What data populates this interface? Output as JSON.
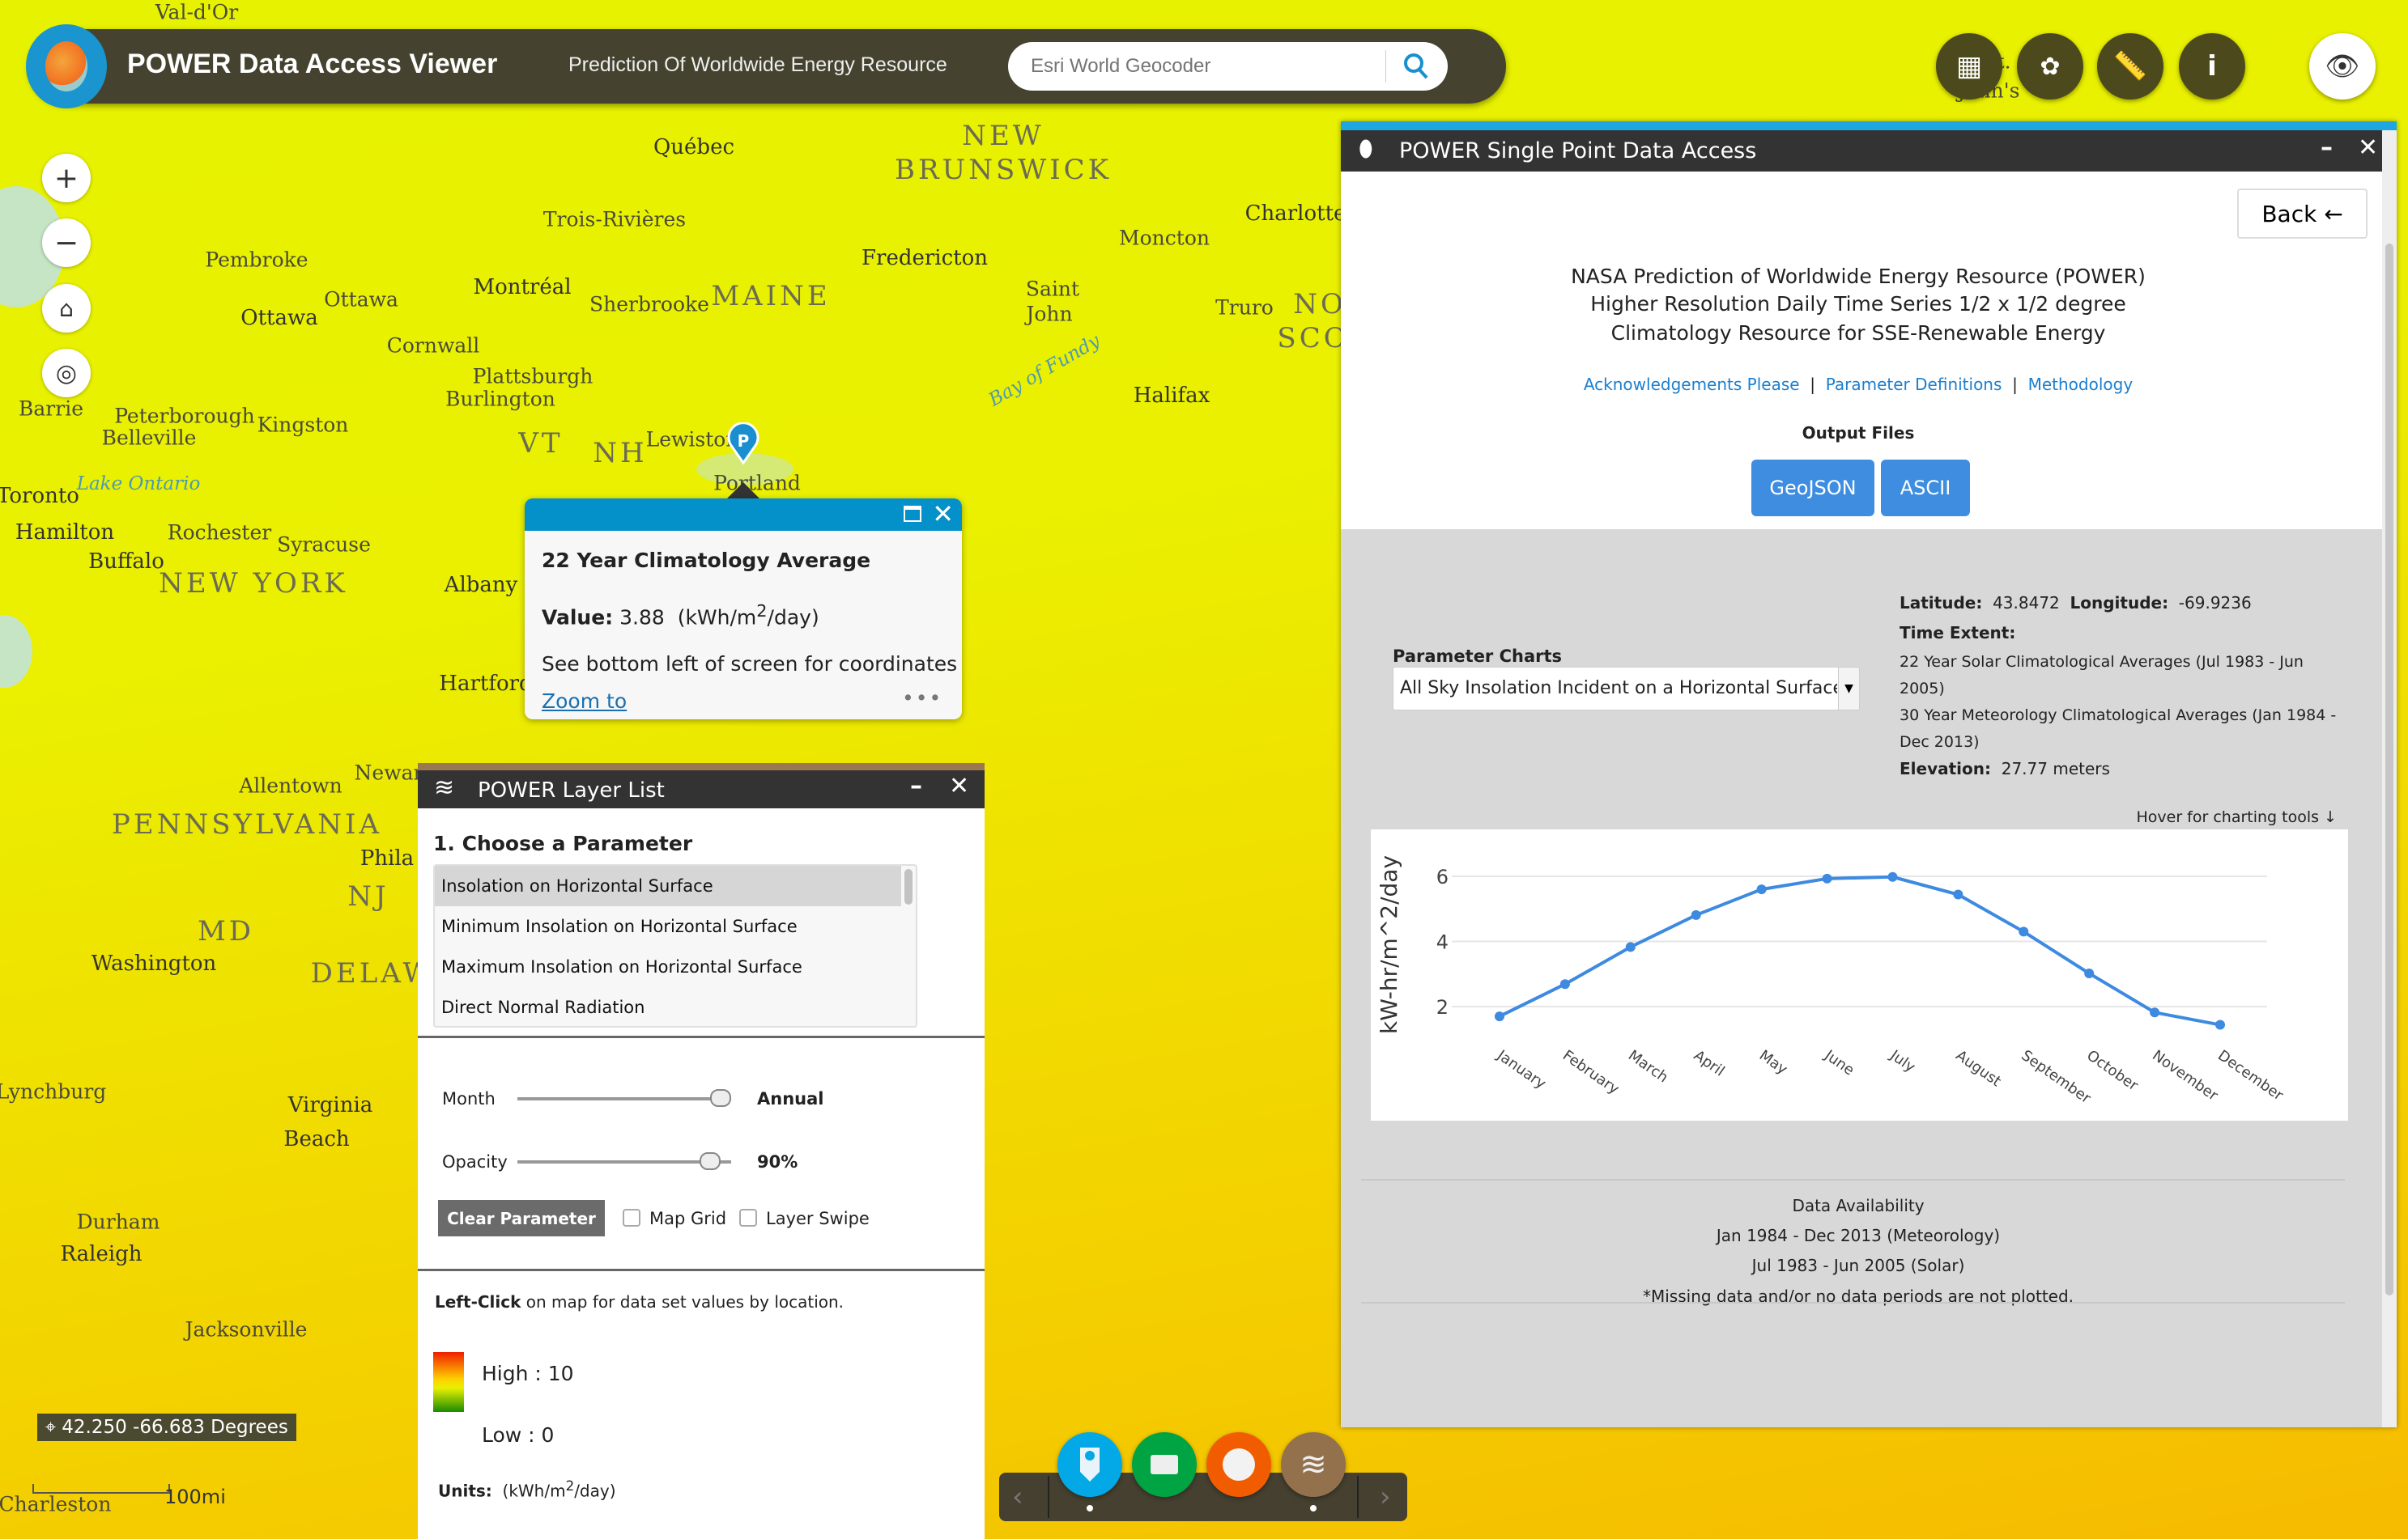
{
  "header": {
    "title": "POWER Data Access Viewer",
    "subtitle": "Prediction Of Worldwide Energy Resource",
    "search_placeholder": "Esri World Geocoder"
  },
  "map": {
    "labels": [
      "Val-d'Or",
      "Québec",
      "NEW",
      "BRUNSWICK",
      "Trois-Rivières",
      "Pembroke",
      "Ottawa",
      "Ottawa",
      "Montréal",
      "Sherbrooke",
      "MAINE",
      "Fredericton",
      "Moncton",
      "Saint",
      "John",
      "Truro",
      "NO",
      "SCO",
      "Halifax",
      "Cornwall",
      "Plattsburgh",
      "Burlington",
      "VT",
      "NH",
      "Lewiston",
      "Portland",
      "Barrie",
      "Peterborough",
      "Belleville",
      "Kingston",
      "Toronto",
      "Lake Ontario",
      "Hamilton",
      "Rochester",
      "Syracuse",
      "Buffalo",
      "NEW YORK",
      "Albany",
      "Hartford",
      "Allentown",
      "PENNSYLVANIA",
      "Phila",
      "NJ",
      "MD",
      "Washington",
      "DELAW",
      "Virginia",
      "Beach",
      "Lynchburg",
      "Durham",
      "Raleigh",
      "Jacksonville",
      "Charleston",
      "Bay of Fundy",
      "Charlotte",
      "St.",
      "John's",
      "Newar"
    ],
    "coordinates": "42.250 -66.683 Degrees",
    "scale_label": "100mi"
  },
  "popup": {
    "title": "22 Year Climatology Average",
    "value_label": "Value:",
    "value": "3.88",
    "units_pre": "(kWh/m",
    "units_sup": "2",
    "units_post": "/day)",
    "note": "See bottom left of screen for coordinates",
    "zoom_link": "Zoom to",
    "more": "•••"
  },
  "layer_list": {
    "title": "POWER Layer List",
    "section": "1. Choose a Parameter",
    "parameters": [
      "Insolation on Horizontal Surface",
      "Minimum Insolation on Horizontal Surface",
      "Maximum Insolation on Horizontal Surface",
      "Direct Normal Radiation"
    ],
    "selected_index": 0,
    "month_label": "Month",
    "month_value": "Annual",
    "opacity_label": "Opacity",
    "opacity_value": "90%",
    "opacity_fraction": 0.9,
    "clear_button": "Clear Parameter",
    "map_grid": "Map Grid",
    "layer_swipe": "Layer Swipe",
    "hint_bold": "Left-Click",
    "hint": " on map for data set values by location.",
    "high": "High : 10",
    "low": "Low : 0",
    "units_label": "Units:",
    "units_pre": "(kWh/m",
    "units_sup": "2",
    "units_post": "/day)"
  },
  "single_point": {
    "title": "POWER Single Point Data Access",
    "back": "Back ←",
    "heading_line1": "NASA Prediction of Worldwide Energy Resource (POWER)",
    "heading_line2_pre": "Higher Resolution Daily Time Series ",
    "heading_line2_frac": "1/2 x 1/2",
    "heading_line2_post": " degree",
    "heading_line3": "Climatology Resource for SSE-Renewable Energy",
    "links": [
      "Acknowledgements Please",
      "Parameter Definitions",
      "Methodology"
    ],
    "output_files": "Output Files",
    "buttons": [
      "GeoJSON",
      "ASCII"
    ],
    "param_charts_label": "Parameter Charts",
    "param_select": "All Sky Insolation Incident on a Horizontal Surface",
    "latitude_label": "Latitude:",
    "latitude": "43.8472",
    "longitude_label": "Longitude:",
    "longitude": "-69.9236",
    "time_extent_label": "Time Extent:",
    "time_extent_1": "22 Year Solar Climatological Averages (Jul 1983 - Jun 2005)",
    "time_extent_2": "30 Year Meteorology Climatological Averages (Jan 1984 - Dec 2013)",
    "elevation_label": "Elevation:",
    "elevation": "27.77 meters",
    "hover_hint": "Hover for charting tools ↓",
    "availability_title": "Data Availability",
    "availability_1": "Jan 1984 - Dec 2013 (Meteorology)",
    "availability_2": "Jul 1983 - Jun 2005 (Solar)",
    "availability_note": "*Missing data and/or no data periods are not plotted."
  },
  "chart_data": {
    "type": "line",
    "categories": [
      "January",
      "February",
      "March",
      "April",
      "May",
      "June",
      "July",
      "August",
      "September",
      "October",
      "November",
      "December"
    ],
    "values": [
      1.7,
      2.69,
      3.83,
      4.81,
      5.6,
      5.93,
      5.98,
      5.44,
      4.3,
      3.02,
      1.82,
      1.44
    ],
    "ylabel": "kW-hr/m^2/day",
    "yticks": [
      2,
      4,
      6
    ],
    "grid": true,
    "color": "#3d8ae0"
  },
  "dock": {
    "items": [
      "point-marker-icon",
      "rectangle-icon",
      "circle-icon",
      "layers-icon"
    ]
  },
  "colors": {
    "header_bg": "#45432f",
    "accent_blue": "#1ea6e0",
    "button_blue": "#3e8de0",
    "popup_header": "#0490c8"
  }
}
